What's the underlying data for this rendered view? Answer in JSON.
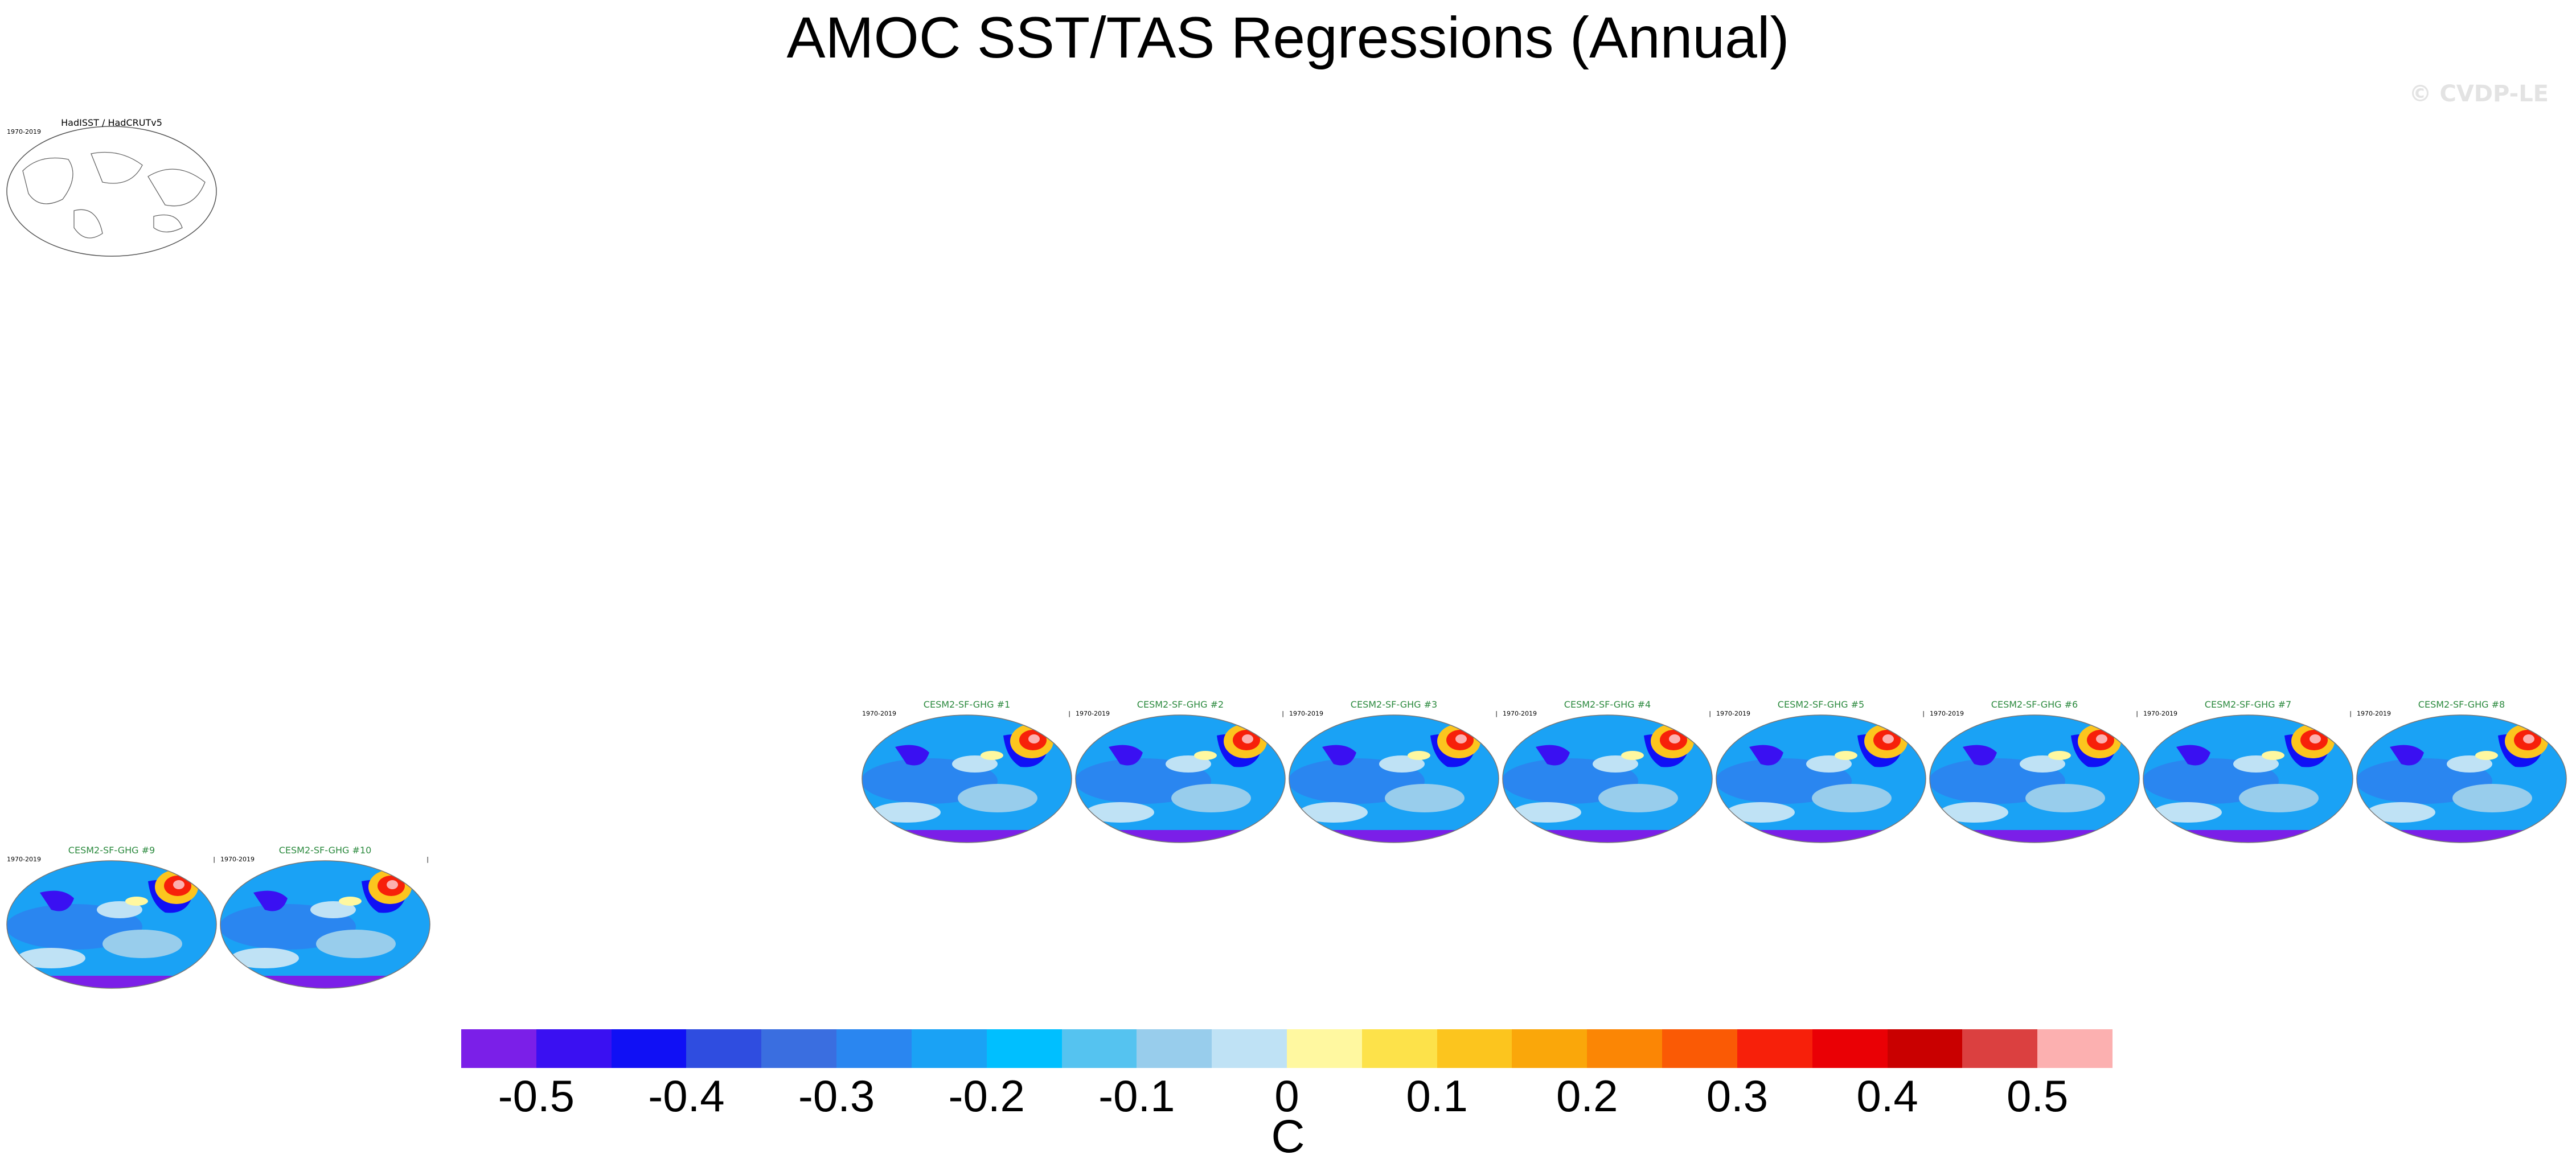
{
  "title": "AMOC SST/TAS Regressions (Annual)",
  "watermark": "© CVDP-LE",
  "panels": [
    {
      "title": "HadISST / HadCRUTv5",
      "period": "1970-2019",
      "kind": "obs"
    },
    {
      "title": "CESM2-SF-GHG #1",
      "period": "1970-2019",
      "kind": "model"
    },
    {
      "title": "CESM2-SF-GHG #2",
      "period": "1970-2019",
      "kind": "model"
    },
    {
      "title": "CESM2-SF-GHG #3",
      "period": "1970-2019",
      "kind": "model"
    },
    {
      "title": "CESM2-SF-GHG #4",
      "period": "1970-2019",
      "kind": "model"
    },
    {
      "title": "CESM2-SF-GHG #5",
      "period": "1970-2019",
      "kind": "model"
    },
    {
      "title": "CESM2-SF-GHG #6",
      "period": "1970-2019",
      "kind": "model"
    },
    {
      "title": "CESM2-SF-GHG #7",
      "period": "1970-2019",
      "kind": "model"
    },
    {
      "title": "CESM2-SF-GHG #8",
      "period": "1970-2019",
      "kind": "model"
    },
    {
      "title": "CESM2-SF-GHG #9",
      "period": "1970-2019",
      "kind": "model"
    },
    {
      "title": "CESM2-SF-GHG #10",
      "period": "1970-2019",
      "kind": "model"
    }
  ],
  "panel_tick": "|",
  "colorbar": {
    "unit": "C",
    "labels": [
      "-0.5",
      "-0.4",
      "-0.3",
      "-0.2",
      "-0.1",
      "0",
      "0.1",
      "0.2",
      "0.3",
      "0.4",
      "0.5"
    ],
    "colors": [
      "#7b1fe8",
      "#3a10f2",
      "#1010f5",
      "#2f4de0",
      "#3a6ee0",
      "#2a86f0",
      "#1aa2f5",
      "#00bfff",
      "#55c3f0",
      "#98cdec",
      "#bfe2f5",
      "#fff8a0",
      "#fde24a",
      "#fcc51e",
      "#faa70a",
      "#fb8605",
      "#fa5a05",
      "#f7200a",
      "#ea0005",
      "#c90000",
      "#db4040",
      "#fcb0b0"
    ]
  }
}
